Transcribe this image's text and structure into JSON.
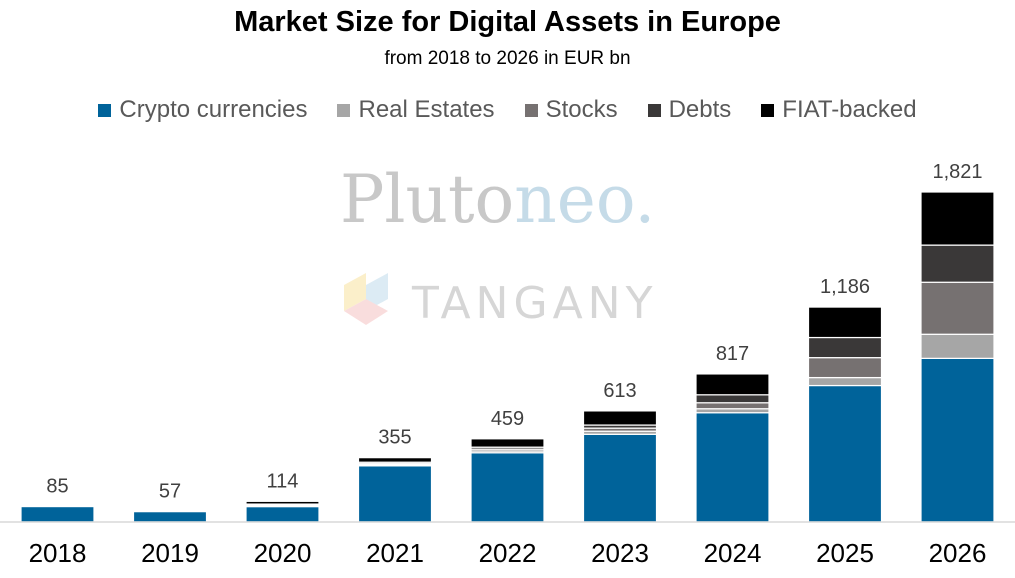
{
  "chart_data": {
    "type": "bar",
    "stacked": true,
    "title": "Market Size for Digital Assets in Europe",
    "subtitle": "from 2018 to 2026 in EUR bn",
    "categories": [
      "2018",
      "2019",
      "2020",
      "2021",
      "2022",
      "2023",
      "2024",
      "2025",
      "2026"
    ],
    "totals": [
      85,
      57,
      114,
      355,
      459,
      613,
      817,
      1186,
      1821
    ],
    "total_labels": [
      "85",
      "57",
      "114",
      "355",
      "459",
      "613",
      "817",
      "1,186",
      "1,821"
    ],
    "series": [
      {
        "name": "Crypto currencies",
        "color": "#00639a",
        "values": [
          85,
          57,
          85,
          310,
          382,
          484,
          603,
          753,
          903
        ]
      },
      {
        "name": "Real Estates",
        "color": "#a6a6a6",
        "values": [
          0,
          0,
          3,
          6,
          10,
          17,
          22,
          44,
          133
        ]
      },
      {
        "name": "Stocks",
        "color": "#767171",
        "values": [
          0,
          0,
          5,
          6,
          10,
          17,
          33,
          110,
          287
        ]
      },
      {
        "name": "Debts",
        "color": "#3a3838",
        "values": [
          0,
          0,
          6,
          8,
          11,
          17,
          44,
          111,
          205
        ]
      },
      {
        "name": "FIAT-backed",
        "color": "#000000",
        "values": [
          0,
          0,
          15,
          25,
          46,
          78,
          115,
          168,
          293
        ]
      }
    ],
    "ylim": [
      0,
      1821
    ],
    "grid": false,
    "legend_position": "top"
  },
  "watermarks": {
    "pluto": "Pluto",
    "neo": "neo.",
    "tangany": "TANGANY",
    "pluto_color": "#c8c8c8",
    "neo_color": "#c5dbe8",
    "tangany_color": "#d6d6d6"
  }
}
